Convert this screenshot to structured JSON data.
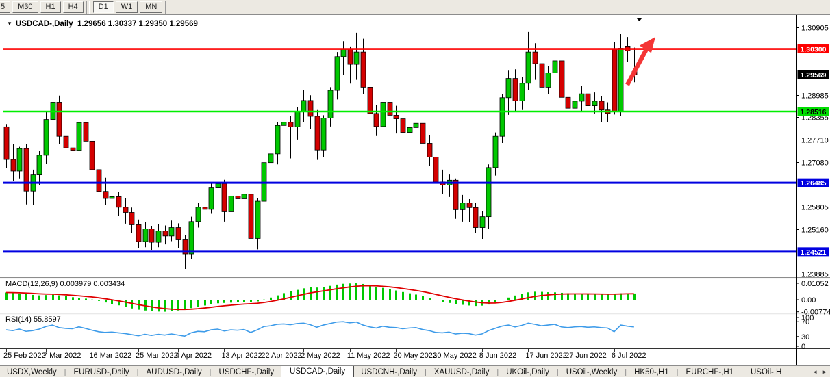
{
  "toolbar": {
    "timeframes": [
      {
        "label": "5",
        "active": false,
        "partial": true
      },
      {
        "label": "M30",
        "active": false
      },
      {
        "label": "H1",
        "active": false
      },
      {
        "label": "H4",
        "active": false
      },
      {
        "label": "D1",
        "active": true
      },
      {
        "label": "W1",
        "active": false
      },
      {
        "label": "MN",
        "active": false
      }
    ]
  },
  "chart_header": {
    "dropdown_icon": "▼",
    "symbol": "USDCAD-,Daily",
    "ohlc_text": "1.29656 1.30337 1.29350 1.29569",
    "open": "1.29656",
    "high": "1.30337",
    "low": "1.29350",
    "close": "1.29569"
  },
  "indicators": {
    "macd": {
      "label": "MACD(12,26,9) 0.003979 0.003434",
      "scale_labels": [
        {
          "text": "0.01052",
          "value": 0.01052
        },
        {
          "text": "0.00",
          "value": 0
        },
        {
          "text": "-0.007744",
          "value": -0.007744
        }
      ]
    },
    "rsi": {
      "label": "RSI(14) 55.8597",
      "scale_labels": [
        {
          "text": "100",
          "value": 100
        },
        {
          "text": "70",
          "value": 70
        },
        {
          "text": "30",
          "value": 30
        },
        {
          "text": "0",
          "value": 0
        }
      ],
      "level_lines": [
        70,
        30
      ]
    }
  },
  "price_axis": {
    "plain_ticks": [
      {
        "text": "1.30905",
        "price": 1.30905
      },
      {
        "text": "1.28985",
        "price": 1.28985
      },
      {
        "text": "1.28355",
        "price": 1.28355
      },
      {
        "text": "1.27710",
        "price": 1.2771
      },
      {
        "text": "1.27080",
        "price": 1.2708
      },
      {
        "text": "1.25805",
        "price": 1.25805
      },
      {
        "text": "1.25160",
        "price": 1.2516
      },
      {
        "text": "1.23885",
        "price": 1.23885
      }
    ],
    "badges": [
      {
        "text": "1.30300",
        "price": 1.303,
        "bg": "#fe0000",
        "fg": "#ffffff"
      },
      {
        "text": "1.29569",
        "price": 1.29569,
        "bg": "#000000",
        "fg": "#ffffff"
      },
      {
        "text": "1.28516",
        "price": 1.28516,
        "bg": "#00dd00",
        "fg": "#000000"
      },
      {
        "text": "1.26485",
        "price": 1.26485,
        "bg": "#0000e0",
        "fg": "#ffffff"
      },
      {
        "text": "1.24521",
        "price": 1.24521,
        "bg": "#0000e0",
        "fg": "#ffffff"
      }
    ]
  },
  "time_axis": {
    "labels": [
      {
        "text": "25 Feb 2022",
        "bar": 0
      },
      {
        "text": "7 Mar 2022",
        "bar": 6
      },
      {
        "text": "16 Mar 2022",
        "bar": 13
      },
      {
        "text": "25 Mar 2022",
        "bar": 20
      },
      {
        "text": "4 Apr 2022",
        "bar": 26
      },
      {
        "text": "13 Apr 2022",
        "bar": 33
      },
      {
        "text": "22 Apr 2022",
        "bar": 39
      },
      {
        "text": "2 May 2022",
        "bar": 45
      },
      {
        "text": "11 May 2022",
        "bar": 52
      },
      {
        "text": "20 May 2022",
        "bar": 59
      },
      {
        "text": "30 May 2022",
        "bar": 65
      },
      {
        "text": "8 Jun 2022",
        "bar": 72
      },
      {
        "text": "17 Jun 2022",
        "bar": 79
      },
      {
        "text": "27 Jun 2022",
        "bar": 85
      },
      {
        "text": "6 Jul 2022",
        "bar": 92
      }
    ]
  },
  "tabs": {
    "items": [
      "USDX,Weekly",
      "EURUSD-,Daily",
      "AUDUSD-,Daily",
      "USDCHF-,Daily",
      "USDCAD-,Daily",
      "USDCNH-,Daily",
      "XAUUSD-,Daily",
      "UKOil-,Daily",
      "USOil-,Weekly",
      "HK50-,H1",
      "EURCHF-,H1",
      "USOil-,H"
    ],
    "active_index": 4,
    "scroll_left_icon": "◄",
    "scroll_right_icon": "►"
  },
  "annotations": {
    "trend_arrow_color": "#f43535",
    "shift_marker_icon": "▼"
  },
  "colors": {
    "bull": "#00c800",
    "bear": "#d40000",
    "outline": "#000000",
    "line_red": "#fe0000",
    "line_green": "#00ee00",
    "line_blue": "#0000e0",
    "bid_line": "#000000",
    "macd_hist": "#00c800",
    "macd_signal": "#e00000",
    "rsi_line": "#3d9be9"
  },
  "chart_data": {
    "type": "candlestick",
    "symbol": "USDCAD-,Daily",
    "timeframe": "Daily",
    "title": "USDCAD-,Daily 1.29656 1.30337 1.29350 1.29569",
    "y_range_main": [
      1.23797,
      1.31266
    ],
    "bid_price": 1.29569,
    "horizontal_lines": [
      {
        "price": 1.303,
        "color": "#fe0000",
        "width": 2.6,
        "name": "resistance"
      },
      {
        "price": 1.28516,
        "color": "#00ee00",
        "width": 2.6,
        "name": "support"
      },
      {
        "price": 1.26485,
        "color": "#0000e0",
        "width": 3,
        "name": "lower-support-1"
      },
      {
        "price": 1.24521,
        "color": "#0000e0",
        "width": 3,
        "name": "lower-support-2"
      }
    ],
    "candles": [
      [
        1.2808,
        1.2816,
        1.269,
        1.2715
      ],
      [
        1.2715,
        1.2758,
        1.2653,
        1.2682
      ],
      [
        1.2682,
        1.2751,
        1.2661,
        1.2746
      ],
      [
        1.2746,
        1.276,
        1.2587,
        1.2625
      ],
      [
        1.2625,
        1.2686,
        1.2585,
        1.2671
      ],
      [
        1.2671,
        1.2739,
        1.2642,
        1.2727
      ],
      [
        1.2727,
        1.2852,
        1.2703,
        1.2829
      ],
      [
        1.2829,
        1.2901,
        1.2783,
        1.2878
      ],
      [
        1.2878,
        1.2897,
        1.2758,
        1.2781
      ],
      [
        1.2781,
        1.2814,
        1.2717,
        1.2748
      ],
      [
        1.2748,
        1.2789,
        1.2698,
        1.2741
      ],
      [
        1.2741,
        1.2836,
        1.2727,
        1.282
      ],
      [
        1.282,
        1.2858,
        1.2751,
        1.2767
      ],
      [
        1.2767,
        1.2784,
        1.2661,
        1.2686
      ],
      [
        1.2686,
        1.2712,
        1.2601,
        1.2624
      ],
      [
        1.2624,
        1.2663,
        1.2586,
        1.2604
      ],
      [
        1.2604,
        1.2646,
        1.2566,
        1.2609
      ],
      [
        1.2609,
        1.2622,
        1.2555,
        1.2579
      ],
      [
        1.2579,
        1.2604,
        1.2532,
        1.2564
      ],
      [
        1.2564,
        1.2578,
        1.2506,
        1.2529
      ],
      [
        1.2529,
        1.2544,
        1.2462,
        1.2481
      ],
      [
        1.2481,
        1.2536,
        1.2465,
        1.2517
      ],
      [
        1.2517,
        1.2524,
        1.2457,
        1.2479
      ],
      [
        1.2479,
        1.2531,
        1.2465,
        1.2511
      ],
      [
        1.2511,
        1.2527,
        1.2473,
        1.2497
      ],
      [
        1.2497,
        1.2541,
        1.2482,
        1.2521
      ],
      [
        1.2521,
        1.2533,
        1.2463,
        1.2486
      ],
      [
        1.2486,
        1.2499,
        1.2403,
        1.2446
      ],
      [
        1.2446,
        1.2552,
        1.2432,
        1.2538
      ],
      [
        1.2538,
        1.2592,
        1.2521,
        1.2579
      ],
      [
        1.2579,
        1.2601,
        1.2543,
        1.2573
      ],
      [
        1.2573,
        1.2646,
        1.256,
        1.2634
      ],
      [
        1.2634,
        1.2676,
        1.2604,
        1.2646
      ],
      [
        1.2646,
        1.2657,
        1.2538,
        1.2566
      ],
      [
        1.2566,
        1.2624,
        1.2552,
        1.2611
      ],
      [
        1.2611,
        1.2634,
        1.2572,
        1.2603
      ],
      [
        1.2603,
        1.2639,
        1.2557,
        1.2616
      ],
      [
        1.2616,
        1.2621,
        1.2458,
        1.249
      ],
      [
        1.249,
        1.2604,
        1.2459,
        1.2596
      ],
      [
        1.2596,
        1.2714,
        1.2571,
        1.2706
      ],
      [
        1.2706,
        1.2742,
        1.2648,
        1.2731
      ],
      [
        1.2731,
        1.2822,
        1.2701,
        1.2812
      ],
      [
        1.2812,
        1.2846,
        1.2774,
        1.2821
      ],
      [
        1.2821,
        1.2838,
        1.2718,
        1.2808
      ],
      [
        1.2808,
        1.2864,
        1.2772,
        1.2851
      ],
      [
        1.2851,
        1.2912,
        1.2822,
        1.2883
      ],
      [
        1.2883,
        1.2898,
        1.2802,
        1.2838
      ],
      [
        1.2838,
        1.2856,
        1.2714,
        1.2742
      ],
      [
        1.2742,
        1.2841,
        1.2721,
        1.2833
      ],
      [
        1.2833,
        1.2921,
        1.2809,
        1.2912
      ],
      [
        1.2912,
        1.3021,
        1.2886,
        1.3008
      ],
      [
        1.3008,
        1.3052,
        1.2956,
        1.3029
      ],
      [
        1.3029,
        1.3037,
        1.2931,
        1.2986
      ],
      [
        1.2986,
        1.3076,
        1.2942,
        1.3021
      ],
      [
        1.3021,
        1.3059,
        1.2901,
        1.2921
      ],
      [
        1.2921,
        1.2941,
        1.2812,
        1.2846
      ],
      [
        1.2846,
        1.2871,
        1.2782,
        1.2809
      ],
      [
        1.2809,
        1.2896,
        1.2791,
        1.2878
      ],
      [
        1.2878,
        1.2892,
        1.2801,
        1.2841
      ],
      [
        1.2841,
        1.2868,
        1.2789,
        1.2831
      ],
      [
        1.2831,
        1.2843,
        1.2761,
        1.2792
      ],
      [
        1.2792,
        1.2824,
        1.2751,
        1.2806
      ],
      [
        1.2806,
        1.2841,
        1.2772,
        1.2818
      ],
      [
        1.2818,
        1.2826,
        1.2732,
        1.2761
      ],
      [
        1.2761,
        1.2784,
        1.2696,
        1.2722
      ],
      [
        1.2722,
        1.2736,
        1.2627,
        1.2651
      ],
      [
        1.2651,
        1.2686,
        1.2616,
        1.2642
      ],
      [
        1.2642,
        1.2672,
        1.2608,
        1.2656
      ],
      [
        1.2656,
        1.2661,
        1.2546,
        1.2572
      ],
      [
        1.2572,
        1.2614,
        1.2538,
        1.2591
      ],
      [
        1.2591,
        1.2602,
        1.2536,
        1.2578
      ],
      [
        1.2578,
        1.2592,
        1.2506,
        1.2521
      ],
      [
        1.2521,
        1.2568,
        1.2488,
        1.2552
      ],
      [
        1.2552,
        1.2701,
        1.2517,
        1.2692
      ],
      [
        1.2692,
        1.2792,
        1.2669,
        1.2781
      ],
      [
        1.2781,
        1.2902,
        1.2762,
        1.2891
      ],
      [
        1.2891,
        1.2968,
        1.2842,
        1.2946
      ],
      [
        1.2946,
        1.2972,
        1.2851,
        1.2882
      ],
      [
        1.2882,
        1.2951,
        1.2856,
        1.2932
      ],
      [
        1.2932,
        1.3078,
        1.2912,
        1.3021
      ],
      [
        1.3021,
        1.3046,
        1.2942,
        1.2988
      ],
      [
        1.2988,
        1.3012,
        1.2896,
        1.2921
      ],
      [
        1.2921,
        1.2982,
        1.2902,
        1.2962
      ],
      [
        1.2962,
        1.3014,
        1.2931,
        1.2996
      ],
      [
        1.2996,
        1.3009,
        1.2861,
        1.2892
      ],
      [
        1.2892,
        1.2912,
        1.2842,
        1.2861
      ],
      [
        1.2861,
        1.2902,
        1.2836,
        1.2881
      ],
      [
        1.2881,
        1.2924,
        1.2852,
        1.2902
      ],
      [
        1.2902,
        1.2911,
        1.2841,
        1.2868
      ],
      [
        1.2868,
        1.2906,
        1.2846,
        1.2881
      ],
      [
        1.2881,
        1.2896,
        1.2821,
        1.2856
      ],
      [
        1.2856,
        1.2878,
        1.2822,
        1.2846
      ],
      [
        1.3031,
        1.3049,
        1.2843,
        1.2852
      ],
      [
        1.2852,
        1.3072,
        1.2838,
        1.3032
      ],
      [
        1.3038,
        1.3064,
        1.2992,
        1.3024
      ],
      [
        1.29656,
        1.30337,
        1.2935,
        1.29569
      ]
    ],
    "macd": {
      "label_values": [
        0.003979,
        0.003434
      ],
      "scale": {
        "max": 0.01052,
        "zero": 0.0,
        "min": -0.007744
      },
      "histogram": [
        0.0046,
        0.0043,
        0.004,
        0.0036,
        0.0031,
        0.0028,
        0.003,
        0.0032,
        0.0028,
        0.0022,
        0.0016,
        0.0012,
        0.0007,
        0.0001,
        -0.0008,
        -0.0018,
        -0.0027,
        -0.0036,
        -0.0046,
        -0.0056,
        -0.0064,
        -0.0069,
        -0.0073,
        -0.0076,
        -0.0077,
        -0.0074,
        -0.0069,
        -0.0063,
        -0.0054,
        -0.0045,
        -0.0037,
        -0.0029,
        -0.0023,
        -0.0021,
        -0.0019,
        -0.0017,
        -0.0015,
        -0.0017,
        -0.0011,
        0.0001,
        0.0014,
        0.0028,
        0.0042,
        0.0053,
        0.0063,
        0.0073,
        0.0079,
        0.0078,
        0.0082,
        0.0089,
        0.0097,
        0.0102,
        0.0104,
        0.0105,
        0.0101,
        0.0093,
        0.0083,
        0.0076,
        0.0067,
        0.0059,
        0.0049,
        0.0041,
        0.0033,
        0.0023,
        0.0011,
        -0.0004,
        -0.0014,
        -0.0021,
        -0.0029,
        -0.0033,
        -0.0037,
        -0.004,
        -0.0038,
        -0.0031,
        -0.0019,
        -0.0003,
        0.0014,
        0.0027,
        0.0037,
        0.0047,
        0.0051,
        0.005,
        0.0048,
        0.0047,
        0.0044,
        0.0041,
        0.0038,
        0.0037,
        0.0036,
        0.0035,
        0.0034,
        0.0033,
        0.0037,
        0.0041,
        0.0041,
        0.003979
      ]
    },
    "rsi": {
      "current": 55.8597,
      "levels": [
        70,
        30
      ],
      "values": [
        48,
        46,
        50,
        44,
        46,
        50,
        57,
        61,
        54,
        52,
        51,
        56,
        52,
        47,
        43,
        41,
        42,
        40,
        38,
        35,
        32,
        36,
        33,
        36,
        34,
        37,
        34,
        31,
        40,
        44,
        43,
        48,
        50,
        45,
        48,
        47,
        49,
        41,
        48,
        57,
        59,
        63,
        64,
        62,
        65,
        66,
        62,
        55,
        61,
        65,
        69,
        70,
        67,
        69,
        61,
        56,
        53,
        58,
        55,
        54,
        51,
        53,
        54,
        49,
        46,
        41,
        40,
        42,
        37,
        39,
        38,
        34,
        37,
        46,
        52,
        58,
        61,
        56,
        60,
        66,
        63,
        59,
        61,
        63,
        56,
        54,
        56,
        57,
        55,
        56,
        54,
        53,
        43,
        61,
        58,
        55.8597
      ]
    }
  }
}
